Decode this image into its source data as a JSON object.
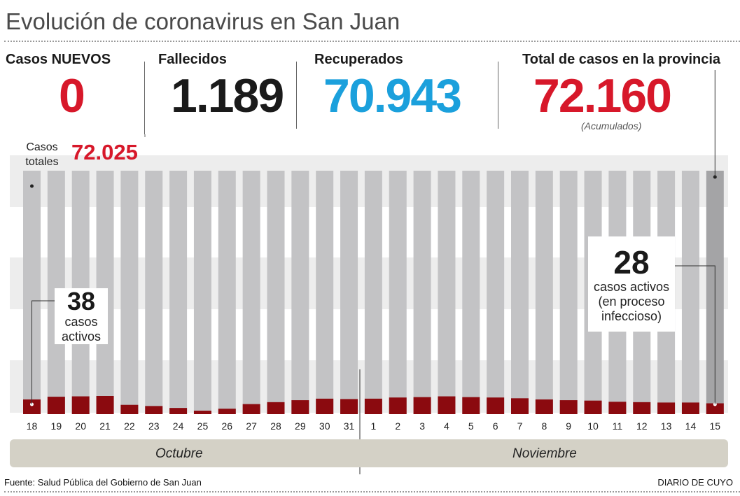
{
  "title": "Evolución de coronavirus en San Juan",
  "stats": {
    "nuevos": {
      "label": "Casos NUEVOS",
      "value": "0",
      "color": "#d7182a"
    },
    "fallecidos": {
      "label": "Fallecidos",
      "value": "1.189",
      "color": "#1a1a1a"
    },
    "recuperados": {
      "label": "Recuperados",
      "value": "70.943",
      "color": "#1ba0dc"
    },
    "total": {
      "label": "Total de casos en la provincia",
      "value": "72.160",
      "color": "#d7182a",
      "note": "(Acumulados)"
    }
  },
  "totals_label": "Casos totales",
  "totals_value": "72.025",
  "annotations": {
    "first": {
      "number": "38",
      "text": "casos activos"
    },
    "last": {
      "number": "28",
      "text": "casos activos (en proceso infeccioso)"
    }
  },
  "months": {
    "october": "Octubre",
    "november": "Noviembre"
  },
  "footer": {
    "source": "Fuente: Salud Pública del Gobierno de San Juan",
    "brand": "DIARIO DE CUYO"
  },
  "colors": {
    "total_bar": "#c3c3c5",
    "total_bar_last": "#a4a4a6",
    "active_bar": "#8b0a0f",
    "band": "#ededed"
  },
  "chart_data": {
    "type": "bar",
    "categories": [
      "18",
      "19",
      "20",
      "21",
      "22",
      "23",
      "24",
      "25",
      "26",
      "27",
      "28",
      "29",
      "30",
      "31",
      "1",
      "2",
      "3",
      "4",
      "5",
      "6",
      "7",
      "8",
      "9",
      "10",
      "11",
      "12",
      "13",
      "14",
      "15"
    ],
    "series": [
      {
        "name": "Casos totales",
        "values": [
          72025,
          72040,
          72055,
          72068,
          72078,
          72085,
          72090,
          72093,
          72096,
          72100,
          72104,
          72108,
          72112,
          72116,
          72120,
          72124,
          72128,
          72132,
          72136,
          72140,
          72143,
          72146,
          72149,
          72152,
          72154,
          72156,
          72158,
          72159,
          72160
        ]
      },
      {
        "name": "casos activos",
        "values": [
          38,
          45,
          46,
          47,
          24,
          21,
          16,
          9,
          14,
          26,
          31,
          36,
          40,
          39,
          40,
          43,
          44,
          46,
          44,
          43,
          41,
          38,
          36,
          35,
          32,
          31,
          30,
          30,
          28
        ]
      }
    ]
  }
}
